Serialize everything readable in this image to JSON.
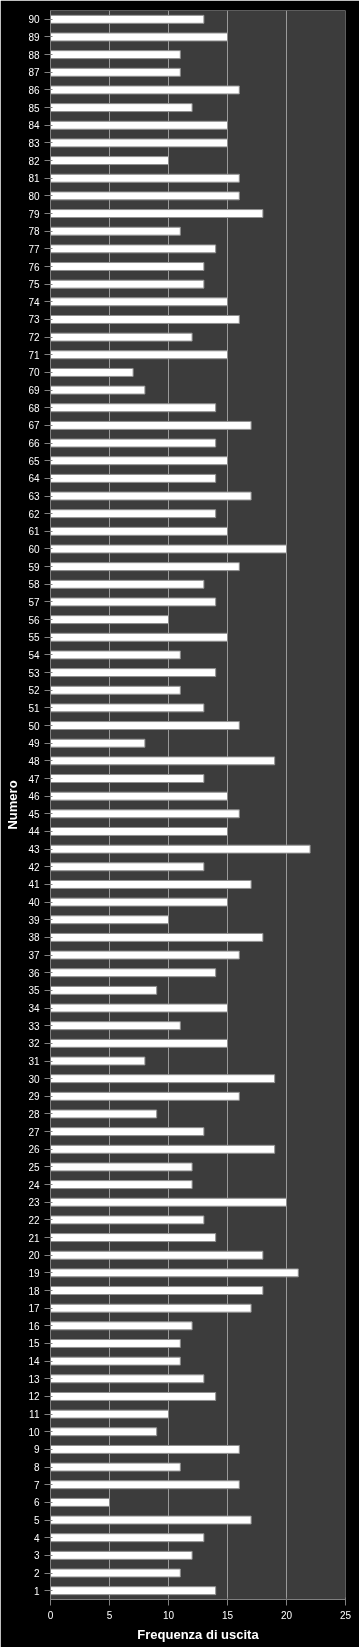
{
  "chart_data": {
    "type": "bar",
    "orientation": "horizontal",
    "xlabel": "Frequenza di uscita",
    "ylabel": "Numero",
    "categories": [
      "90",
      "89",
      "88",
      "87",
      "86",
      "85",
      "84",
      "83",
      "82",
      "81",
      "80",
      "79",
      "78",
      "77",
      "76",
      "75",
      "74",
      "73",
      "72",
      "71",
      "70",
      "69",
      "68",
      "67",
      "66",
      "65",
      "64",
      "63",
      "62",
      "61",
      "60",
      "59",
      "58",
      "57",
      "56",
      "55",
      "54",
      "53",
      "52",
      "51",
      "50",
      "49",
      "48",
      "47",
      "46",
      "45",
      "44",
      "43",
      "42",
      "41",
      "40",
      "39",
      "38",
      "37",
      "36",
      "35",
      "34",
      "33",
      "32",
      "31",
      "30",
      "29",
      "28",
      "27",
      "26",
      "25",
      "24",
      "23",
      "22",
      "21",
      "20",
      "19",
      "18",
      "17",
      "16",
      "15",
      "14",
      "13",
      "12",
      "11",
      "10",
      "9",
      "8",
      "7",
      "6",
      "5",
      "4",
      "3",
      "2",
      "1"
    ],
    "values": [
      13,
      15,
      11,
      11,
      16,
      12,
      15,
      15,
      10,
      16,
      16,
      18,
      11,
      14,
      13,
      13,
      15,
      16,
      12,
      15,
      7,
      8,
      14,
      17,
      14,
      15,
      14,
      17,
      14,
      15,
      20,
      16,
      13,
      14,
      10,
      15,
      11,
      14,
      11,
      13,
      16,
      8,
      19,
      13,
      15,
      16,
      15,
      22,
      13,
      17,
      15,
      10,
      18,
      16,
      14,
      9,
      15,
      11,
      15,
      8,
      19,
      16,
      9,
      13,
      19,
      12,
      12,
      20,
      13,
      14,
      18,
      21,
      18,
      17,
      12,
      11,
      11,
      13,
      14,
      10,
      9,
      16,
      11,
      16,
      5,
      17,
      13,
      12,
      11,
      14
    ],
    "color": "#ffffff",
    "xlim": [
      0,
      25
    ],
    "xticks": [
      0,
      5,
      10,
      15,
      20,
      25
    ],
    "grid": "x"
  }
}
